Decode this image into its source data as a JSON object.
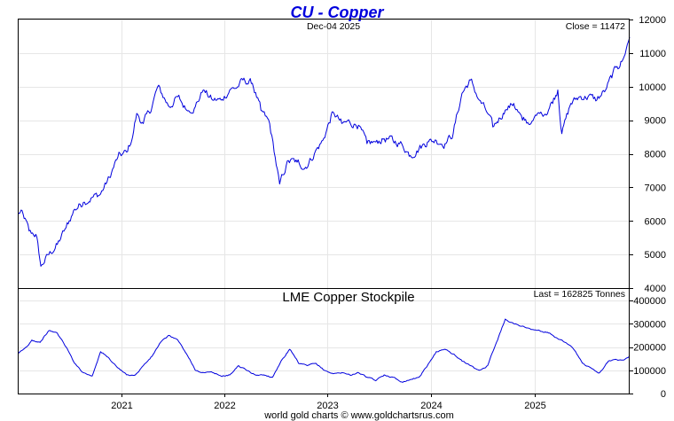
{
  "chart_data": [
    {
      "type": "line",
      "title": "CU - Copper",
      "date_label": "Dec-04  2025",
      "last_label": "Close = 11472",
      "y_ticks": [
        4000,
        5000,
        6000,
        7000,
        8000,
        9000,
        10000,
        11000,
        12000
      ],
      "ylim": [
        4000,
        12000
      ],
      "xlim": [
        "2020-01-01",
        "2025-12-04"
      ],
      "grid": true,
      "series": [
        {
          "color": "#0000dd",
          "x": [
            "2020-01-02",
            "2020-01-20",
            "2020-02-10",
            "2020-03-05",
            "2020-03-23",
            "2020-04-20",
            "2020-05-20",
            "2020-06-20",
            "2020-07-20",
            "2020-08-20",
            "2020-09-20",
            "2020-10-20",
            "2020-11-20",
            "2020-12-20",
            "2021-01-20",
            "2021-02-10",
            "2021-02-25",
            "2021-03-20",
            "2021-04-20",
            "2021-05-10",
            "2021-06-20",
            "2021-07-20",
            "2021-08-20",
            "2021-09-20",
            "2021-10-18",
            "2021-11-20",
            "2021-12-20",
            "2022-01-20",
            "2022-02-20",
            "2022-03-07",
            "2022-04-10",
            "2022-05-10",
            "2022-06-10",
            "2022-07-15",
            "2022-08-15",
            "2022-09-15",
            "2022-10-15",
            "2022-11-15",
            "2022-12-15",
            "2023-01-20",
            "2023-02-20",
            "2023-03-20",
            "2023-04-20",
            "2023-05-20",
            "2023-06-20",
            "2023-07-20",
            "2023-08-20",
            "2023-09-20",
            "2023-10-20",
            "2023-11-20",
            "2023-12-20",
            "2024-01-20",
            "2024-02-20",
            "2024-03-20",
            "2024-04-20",
            "2024-05-20",
            "2024-06-20",
            "2024-07-20",
            "2024-08-07",
            "2024-09-20",
            "2024-10-20",
            "2024-11-20",
            "2024-12-20",
            "2025-01-20",
            "2025-02-20",
            "2025-03-25",
            "2025-04-08",
            "2025-05-10",
            "2025-06-10",
            "2025-07-10",
            "2025-08-10",
            "2025-09-10",
            "2025-10-20",
            "2025-11-10",
            "2025-12-04"
          ],
          "values": [
            6250,
            6200,
            5700,
            5600,
            4650,
            5000,
            5300,
            5800,
            6350,
            6550,
            6700,
            6800,
            7300,
            7900,
            8050,
            8500,
            9200,
            8900,
            9400,
            10000,
            9400,
            9700,
            9300,
            9400,
            9900,
            9600,
            9600,
            9900,
            10000,
            10200,
            10100,
            9300,
            8900,
            7100,
            7800,
            7750,
            7600,
            8000,
            8400,
            9250,
            8900,
            8950,
            8850,
            8300,
            8350,
            8450,
            8400,
            8300,
            7950,
            8150,
            8350,
            8400,
            8300,
            8600,
            9800,
            10200,
            9600,
            9200,
            8800,
            9300,
            9500,
            9000,
            8900,
            9200,
            9300,
            9900,
            8600,
            9500,
            9700,
            9700,
            9600,
            9900,
            10600,
            10800,
            11472
          ]
        }
      ]
    },
    {
      "type": "line",
      "title": "LME Copper Stockpile",
      "last_label": "Last = 162825 Tonnes",
      "y_ticks": [
        0,
        100000,
        200000,
        300000,
        400000
      ],
      "ylim": [
        0,
        400000
      ],
      "xlim": [
        "2020-01-01",
        "2025-12-04"
      ],
      "x_ticks": [
        "2021",
        "2022",
        "2023",
        "2024",
        "2025"
      ],
      "grid": true,
      "series": [
        {
          "color": "#0000dd",
          "x": [
            "2020-01-02",
            "2020-02-01",
            "2020-02-20",
            "2020-03-20",
            "2020-04-20",
            "2020-05-20",
            "2020-06-20",
            "2020-07-20",
            "2020-08-20",
            "2020-09-20",
            "2020-10-20",
            "2020-11-20",
            "2020-12-20",
            "2021-01-20",
            "2021-02-20",
            "2021-03-20",
            "2021-04-20",
            "2021-05-20",
            "2021-06-20",
            "2021-07-20",
            "2021-08-20",
            "2021-09-20",
            "2021-10-20",
            "2021-11-20",
            "2021-12-20",
            "2022-01-20",
            "2022-02-20",
            "2022-03-20",
            "2022-04-20",
            "2022-05-20",
            "2022-06-20",
            "2022-07-20",
            "2022-08-20",
            "2022-09-20",
            "2022-10-20",
            "2022-11-20",
            "2022-12-20",
            "2023-01-20",
            "2023-02-20",
            "2023-03-20",
            "2023-04-20",
            "2023-05-20",
            "2023-06-20",
            "2023-07-20",
            "2023-08-20",
            "2023-09-20",
            "2023-10-20",
            "2023-11-20",
            "2023-12-20",
            "2024-01-20",
            "2024-02-20",
            "2024-03-20",
            "2024-04-20",
            "2024-05-20",
            "2024-06-20",
            "2024-07-20",
            "2024-08-20",
            "2024-09-20",
            "2024-10-20",
            "2024-11-20",
            "2024-12-20",
            "2025-01-20",
            "2025-02-20",
            "2025-03-20",
            "2025-04-20",
            "2025-05-20",
            "2025-06-20",
            "2025-07-20",
            "2025-08-20",
            "2025-09-20",
            "2025-10-20",
            "2025-11-20",
            "2025-12-04"
          ],
          "values": [
            170000,
            200000,
            230000,
            220000,
            270000,
            260000,
            200000,
            130000,
            90000,
            75000,
            180000,
            150000,
            110000,
            80000,
            80000,
            120000,
            160000,
            220000,
            250000,
            230000,
            170000,
            100000,
            90000,
            90000,
            75000,
            80000,
            120000,
            100000,
            80000,
            80000,
            70000,
            140000,
            190000,
            130000,
            120000,
            130000,
            100000,
            85000,
            90000,
            80000,
            90000,
            70000,
            55000,
            80000,
            70000,
            50000,
            60000,
            70000,
            120000,
            180000,
            190000,
            170000,
            140000,
            120000,
            100000,
            120000,
            220000,
            320000,
            300000,
            290000,
            275000,
            270000,
            260000,
            240000,
            220000,
            190000,
            130000,
            110000,
            90000,
            140000,
            145000,
            150000,
            162825
          ]
        }
      ]
    }
  ],
  "footer": "world gold charts © www.goldchartsrus.com"
}
